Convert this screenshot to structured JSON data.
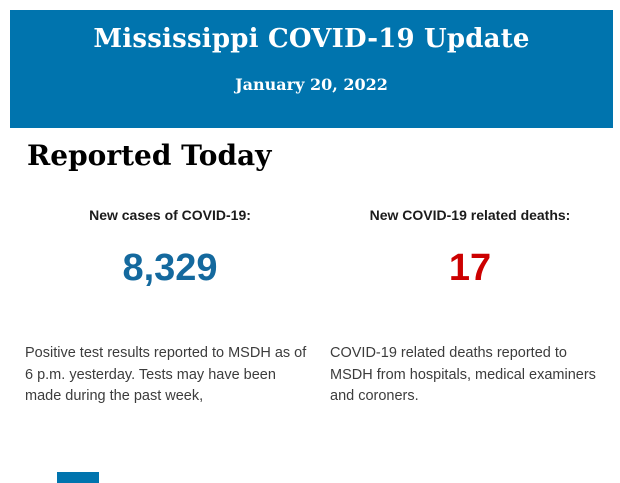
{
  "banner": {
    "title": "Mississippi COVID-19 Update",
    "date": "January 20, 2022",
    "background_color": "#0074AE",
    "text_color": "#FFFFFF"
  },
  "section": {
    "heading": "Reported Today"
  },
  "stats": {
    "cases": {
      "label": "New cases of COVID-19:",
      "value": "8,329",
      "value_color": "#14699E",
      "description": "Positive test results reported to MSDH as of 6 p.m. yesterday. Tests may have been made during the past week,"
    },
    "deaths": {
      "label": "New COVID-19 related deaths:",
      "value": "17",
      "value_color": "#CC0000",
      "description": "COVID-19 related deaths reported to MSDH from hospitals, medical examiners and coroners."
    }
  }
}
